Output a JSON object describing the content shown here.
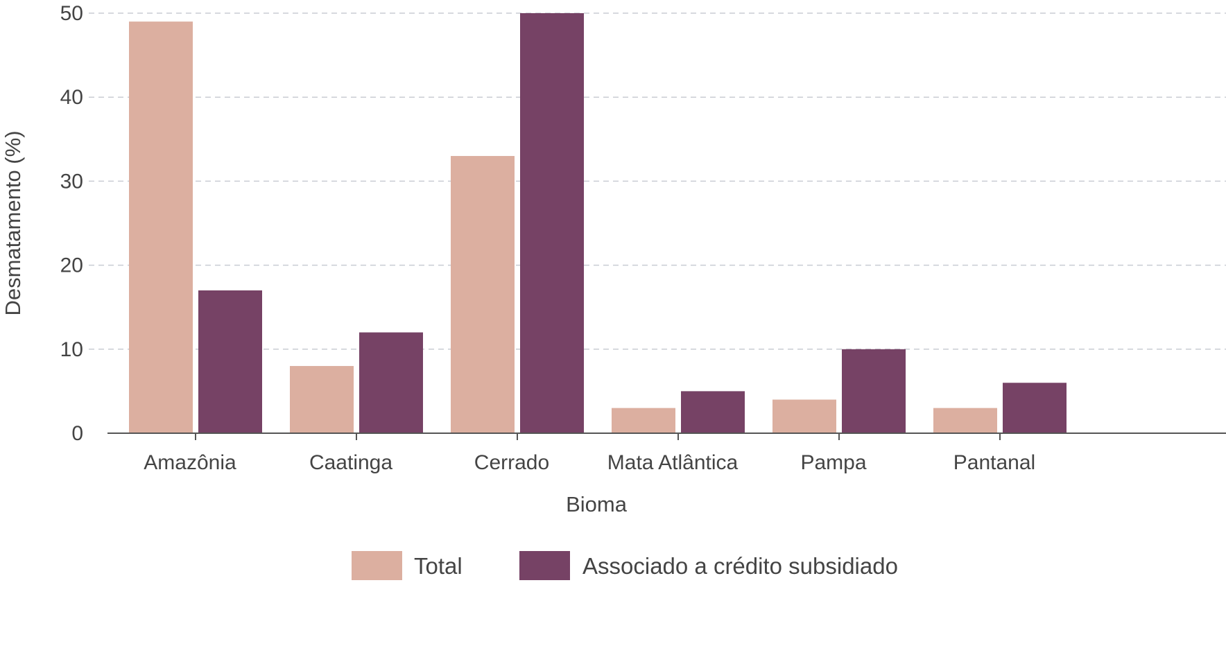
{
  "chart_data": {
    "type": "bar",
    "categories": [
      "Amazônia",
      "Caatinga",
      "Cerrado",
      "Mata Atlântica",
      "Pampa",
      "Pantanal"
    ],
    "series": [
      {
        "name": "Total",
        "values": [
          49,
          8,
          33,
          3,
          4,
          3
        ],
        "color": "#dcafa0"
      },
      {
        "name": "Associado a crédito subsidiado",
        "values": [
          17,
          12,
          50,
          5,
          10,
          6
        ],
        "color": "#764265"
      }
    ],
    "xlabel": "Bioma",
    "ylabel": "Desmatamento (%)",
    "ylim": [
      0,
      50
    ],
    "yticks": [
      0,
      10,
      20,
      30,
      40,
      50
    ],
    "grid": true,
    "legend_position": "bottom"
  }
}
